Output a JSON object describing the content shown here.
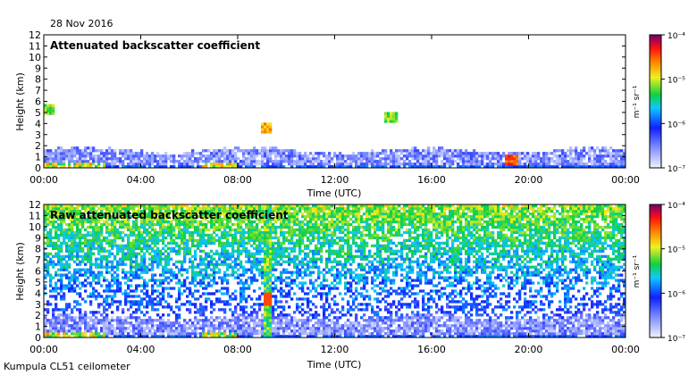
{
  "header": {
    "date": "28 Nov 2016"
  },
  "footer": {
    "site": "Kumpula CL51 ceilometer"
  },
  "colors": {
    "low": "#e8e8ff",
    "mid": "#2030ff",
    "high": "#ffe020",
    "top": "#7a0070"
  },
  "chart_data": [
    {
      "type": "heatmap",
      "title": "Attenuated backscatter coefficient",
      "xlabel": "Time (UTC)",
      "ylabel": "Height (km)",
      "xticks": [
        "00:00",
        "04:00",
        "08:00",
        "12:00",
        "16:00",
        "20:00",
        "00:00"
      ],
      "xlim_hours": [
        0,
        24
      ],
      "yticks": [
        0,
        1,
        2,
        3,
        4,
        5,
        6,
        7,
        8,
        9,
        10,
        11,
        12
      ],
      "ylim_km": [
        0,
        12
      ],
      "colorbar": {
        "scale": "log",
        "label": "m⁻¹ sr⁻¹",
        "ticks": [
          "10⁻⁴",
          "10⁻⁵",
          "10⁻⁶",
          "10⁻⁷"
        ]
      },
      "features": {
        "boundary_layer_top_km": 1.6,
        "clouds": [
          {
            "time_h": 0.2,
            "height_km": 5.2,
            "level": 0.6
          },
          {
            "time_h": 9.2,
            "height_km": 3.6,
            "level": 0.75
          },
          {
            "time_h": 14.3,
            "height_km": 4.5,
            "level": 0.6
          },
          {
            "time_h": 19.3,
            "height_km": 0.7,
            "level": 0.85
          }
        ]
      }
    },
    {
      "type": "heatmap",
      "title": "Raw attenuated backscatter coefficient",
      "xlabel": "Time (UTC)",
      "ylabel": "Height (km)",
      "xticks": [
        "00:00",
        "04:00",
        "08:00",
        "12:00",
        "16:00",
        "20:00",
        "00:00"
      ],
      "xlim_hours": [
        0,
        24
      ],
      "yticks": [
        0,
        1,
        2,
        3,
        4,
        5,
        6,
        7,
        8,
        9,
        10,
        11,
        12
      ],
      "ylim_km": [
        0,
        12
      ],
      "colorbar": {
        "scale": "log",
        "label": "m⁻¹ sr⁻¹",
        "ticks": [
          "10⁻⁴",
          "10⁻⁵",
          "10⁻⁶",
          "10⁻⁷"
        ]
      },
      "features": {
        "boundary_layer_top_km": 1.8,
        "noise_increases_with_height": true,
        "rain_column_time_h": 9.2
      }
    }
  ]
}
